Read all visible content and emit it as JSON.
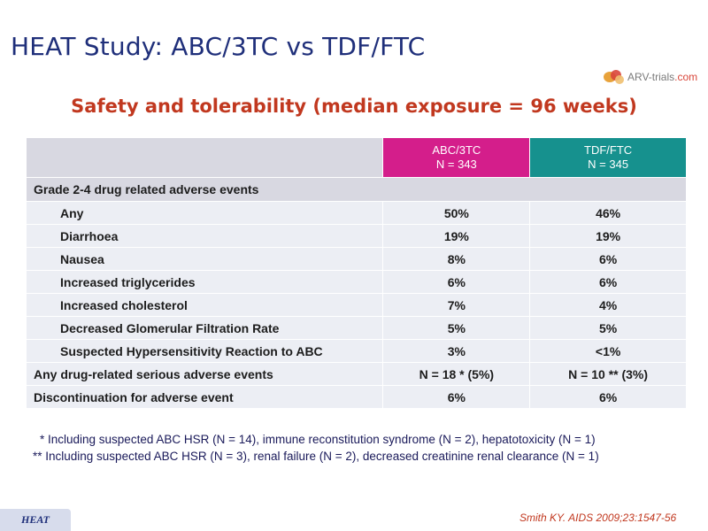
{
  "slide": {
    "title": "HEAT Study: ABC/3TC vs TDF/FTC",
    "logo_text_main": "ARV-trials",
    "logo_text_suffix": ".com",
    "subtitle": "Safety and tolerability (median exposure = 96 weeks)"
  },
  "table": {
    "columns": [
      {
        "name": "ABC/3TC",
        "n": "N = 343",
        "color": "#d41e8b"
      },
      {
        "name": "TDF/FTC",
        "n": "N = 345",
        "color": "#16918e"
      }
    ],
    "section_header": "Grade 2-4 drug related adverse events",
    "rows": [
      {
        "label": "Any",
        "abc": "50%",
        "tdf": "46%"
      },
      {
        "label": "Diarrhoea",
        "abc": "19%",
        "tdf": "19%"
      },
      {
        "label": "Nausea",
        "abc": "8%",
        "tdf": "6%"
      },
      {
        "label": "Increased triglycerides",
        "abc": "6%",
        "tdf": "6%"
      },
      {
        "label": "Increased cholesterol",
        "abc": "7%",
        "tdf": "4%"
      },
      {
        "label": "Decreased Glomerular Filtration Rate",
        "abc": "5%",
        "tdf": "5%"
      },
      {
        "label": "Suspected Hypersensitivity Reaction to ABC",
        "abc": "3%",
        "tdf": "<1%"
      }
    ],
    "summary_rows": [
      {
        "label": "Any drug-related serious adverse events",
        "abc": "N = 18 * (5%)",
        "tdf": "N = 10 ** (3%)"
      },
      {
        "label": "Discontinuation for adverse event",
        "abc": "6%",
        "tdf": "6%"
      }
    ]
  },
  "footnotes": [
    "* Including suspected ABC HSR (N = 14), immune reconstitution syndrome (N = 2), hepatotoxicity (N = 1)",
    "** Including suspected ABC HSR (N = 3), renal failure (N = 2), decreased creatinine renal clearance (N = 1)"
  ],
  "heat_tag": "HEAT",
  "citation": "Smith KY. AIDS 2009;23:1547-56"
}
